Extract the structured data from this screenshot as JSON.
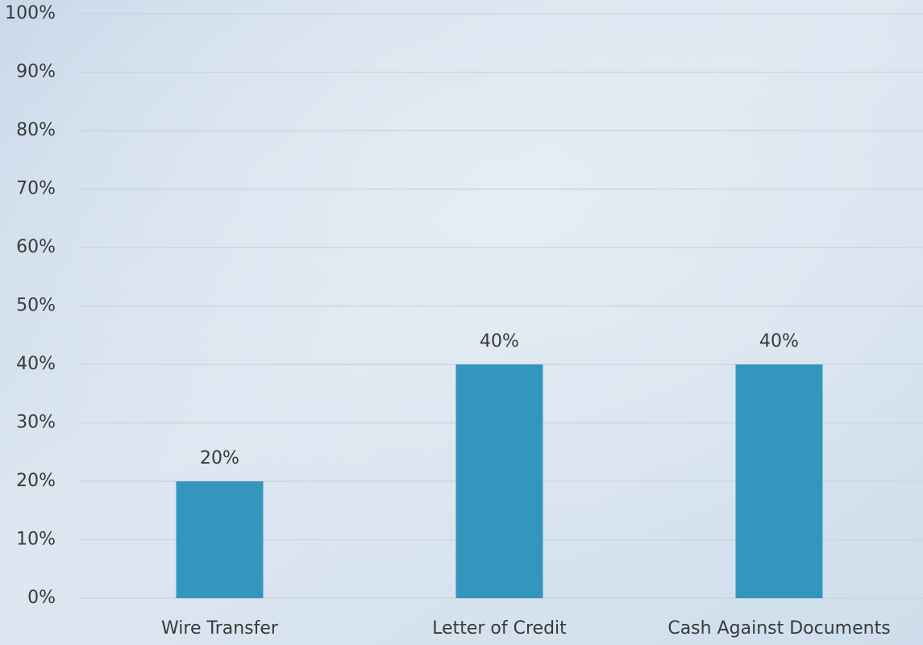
{
  "chart_data": {
    "type": "bar",
    "categories": [
      "Wire Transfer",
      "Letter of Credit",
      "Cash Against Documents"
    ],
    "values": [
      20,
      40,
      40
    ],
    "value_labels": [
      "20%",
      "40%",
      "40%"
    ],
    "color": "#3596bd",
    "ylim": [
      0,
      100
    ],
    "yticks": [
      {
        "value": 0,
        "label": "0%"
      },
      {
        "value": 10,
        "label": "10%"
      },
      {
        "value": 20,
        "label": "20%"
      },
      {
        "value": 30,
        "label": "30%"
      },
      {
        "value": 40,
        "label": "40%"
      },
      {
        "value": 50,
        "label": "50%"
      },
      {
        "value": 60,
        "label": "60%"
      },
      {
        "value": 70,
        "label": "70%"
      },
      {
        "value": 80,
        "label": "80%"
      },
      {
        "value": 90,
        "label": "90%"
      },
      {
        "value": 100,
        "label": "100%"
      }
    ],
    "grid": true
  }
}
